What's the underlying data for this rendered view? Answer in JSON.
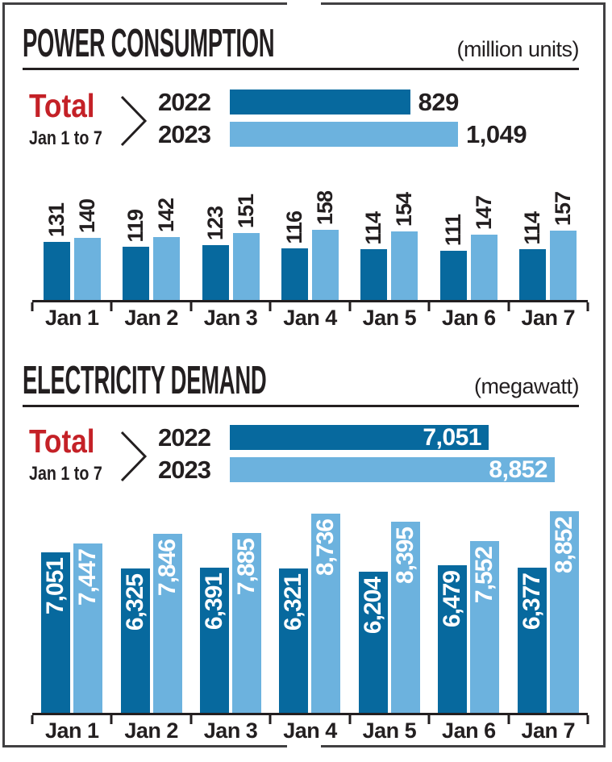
{
  "colors": {
    "dark_blue": "#07699e",
    "light_blue": "#6cb2de",
    "red": "#c42127",
    "text": "#231f20",
    "frame": "#414042",
    "inside_label": "#ffffff"
  },
  "chart_data": [
    {
      "type": "bar",
      "title": "POWER CONSUMPTION",
      "units": "(million units)",
      "total": {
        "label": "Total",
        "sublabel": "Jan 1 to 7",
        "value_position": "outside",
        "rows": [
          {
            "year": "2022",
            "value": 829,
            "display": "829"
          },
          {
            "year": "2023",
            "value": 1049,
            "display": "1,049"
          }
        ]
      },
      "categories": [
        "Jan 1",
        "Jan 2",
        "Jan 3",
        "Jan 4",
        "Jan 5",
        "Jan 6",
        "Jan 7"
      ],
      "series": [
        {
          "name": "2022",
          "color": "#07699e",
          "values": [
            131,
            119,
            123,
            116,
            114,
            111,
            114
          ],
          "labels": [
            "131",
            "119",
            "123",
            "116",
            "114",
            "111",
            "114"
          ]
        },
        {
          "name": "2023",
          "color": "#6cb2de",
          "values": [
            140,
            142,
            151,
            158,
            154,
            147,
            157
          ],
          "labels": [
            "140",
            "142",
            "151",
            "158",
            "154",
            "147",
            "157"
          ]
        }
      ],
      "daily_label_position": "above",
      "ylim": [
        0,
        158
      ],
      "grid": false,
      "legend": "none"
    },
    {
      "type": "bar",
      "title": "ELECTRICITY DEMAND",
      "units": "(megawatt)",
      "total": {
        "label": "Total",
        "sublabel": "Jan 1 to 7",
        "value_position": "inside",
        "rows": [
          {
            "year": "2022",
            "value": 7051,
            "display": "7,051"
          },
          {
            "year": "2023",
            "value": 8852,
            "display": "8,852"
          }
        ]
      },
      "categories": [
        "Jan 1",
        "Jan 2",
        "Jan 3",
        "Jan 4",
        "Jan 5",
        "Jan 6",
        "Jan 7"
      ],
      "series": [
        {
          "name": "2022",
          "color": "#07699e",
          "values": [
            7051,
            6325,
            6391,
            6321,
            6204,
            6479,
            6377
          ],
          "labels": [
            "7,051",
            "6,325",
            "6,391",
            "6,321",
            "6,204",
            "6,479",
            "6,377"
          ]
        },
        {
          "name": "2023",
          "color": "#6cb2de",
          "values": [
            7447,
            7846,
            7885,
            8736,
            8395,
            7552,
            8852
          ],
          "labels": [
            "7,447",
            "7,846",
            "7,885",
            "8,736",
            "8,395",
            "7,552",
            "8,852"
          ]
        }
      ],
      "daily_label_position": "inside",
      "ylim": [
        0,
        8852
      ],
      "grid": false,
      "legend": "none"
    }
  ]
}
